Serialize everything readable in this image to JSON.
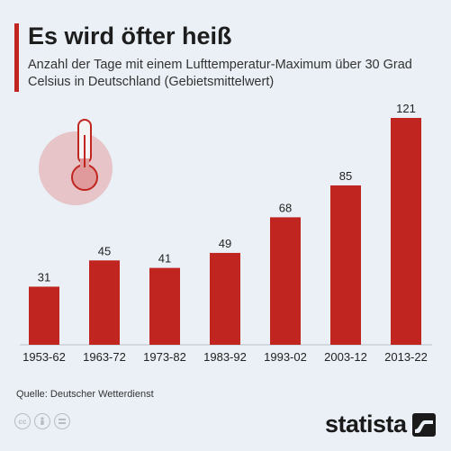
{
  "header": {
    "title": "Es wird öfter heiß",
    "subtitle": "Anzahl der Tage mit einem Lufttemperatur-Maximum über 30 Grad Celsius in Deutschland (Gebietsmittelwert)"
  },
  "footer": {
    "source": "Quelle: Deutscher Wetterdienst",
    "brand": "statista",
    "license_icons": [
      "cc-icon",
      "person-icon",
      "equals-icon"
    ]
  },
  "colors": {
    "bar": "#c0261f",
    "background": "#eaf0f5",
    "accent": "#c0261f"
  },
  "chart_data": {
    "type": "bar",
    "categories": [
      "1953-62",
      "1963-72",
      "1973-82",
      "1983-92",
      "1993-02",
      "2003-12",
      "2013-22"
    ],
    "values": [
      31,
      45,
      41,
      49,
      68,
      85,
      121
    ],
    "title": "Es wird öfter heiß",
    "xlabel": "",
    "ylabel": "",
    "ylim": [
      0,
      121
    ],
    "grid": false,
    "data_labels": true
  }
}
